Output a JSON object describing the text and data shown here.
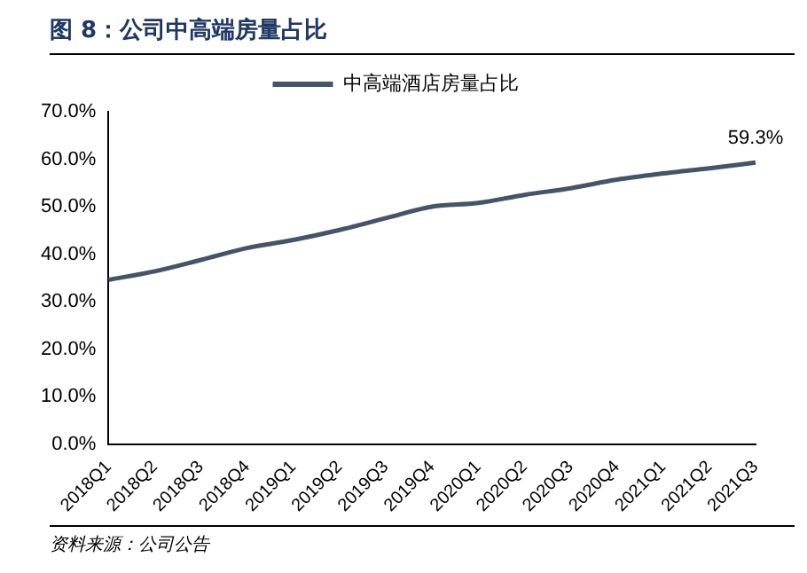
{
  "chart_data": {
    "type": "line",
    "title": "图 8：公司中高端房量占比",
    "categories": [
      "2018Q1",
      "2018Q2",
      "2018Q3",
      "2018Q4",
      "2019Q1",
      "2019Q2",
      "2019Q3",
      "2019Q4",
      "2020Q1",
      "2020Q2",
      "2020Q3",
      "2020Q4",
      "2021Q1",
      "2021Q2",
      "2021Q3"
    ],
    "series": [
      {
        "name": "中高端酒店房量占比",
        "color": "#44546a",
        "values": [
          34.6,
          36.4,
          38.8,
          41.3,
          43.0,
          45.1,
          47.6,
          50.0,
          50.8,
          52.5,
          53.9,
          55.7,
          57.0,
          58.1,
          59.3
        ],
        "value_labels": [
          null,
          null,
          null,
          null,
          null,
          null,
          null,
          null,
          null,
          null,
          null,
          null,
          null,
          null,
          "59.3%"
        ]
      }
    ],
    "ylim": [
      0,
      70
    ],
    "yticks": [
      {
        "value": 0,
        "label": "0.0%"
      },
      {
        "value": 10,
        "label": "10.0%"
      },
      {
        "value": 20,
        "label": "20.0%"
      },
      {
        "value": 30,
        "label": "30.0%"
      },
      {
        "value": 40,
        "label": "40.0%"
      },
      {
        "value": 50,
        "label": "50.0%"
      },
      {
        "value": 60,
        "label": "60.0%"
      },
      {
        "value": 70,
        "label": "70.0%"
      }
    ],
    "grid": false,
    "legend": "top",
    "marker": "none",
    "line_style": "solid",
    "annotations": [
      "资料来源：公司公告"
    ]
  }
}
